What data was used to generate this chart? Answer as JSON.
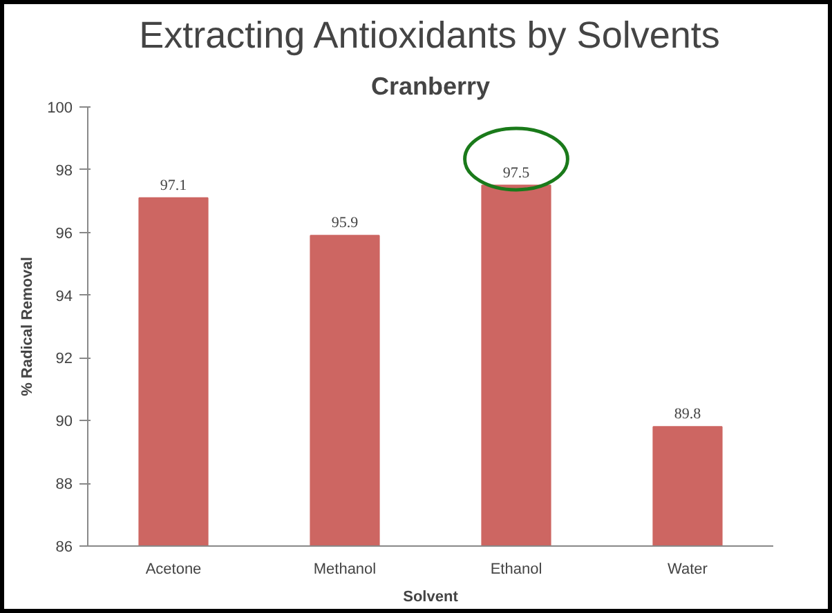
{
  "chart_data": {
    "type": "bar",
    "title": "Extracting Antioxidants by Solvents",
    "subtitle": "Cranberry",
    "categories": [
      "Acetone",
      "Methanol",
      "Ethanol",
      "Water"
    ],
    "values": [
      97.1,
      95.9,
      97.5,
      89.8
    ],
    "color": "#cd6662",
    "xlabel": "Solvent",
    "ylabel": "% Radical Removal",
    "ylim": [
      86,
      100
    ],
    "yticks": [
      86,
      88,
      90,
      92,
      94,
      96,
      98,
      100
    ],
    "data_labels": true,
    "grid": false
  }
}
